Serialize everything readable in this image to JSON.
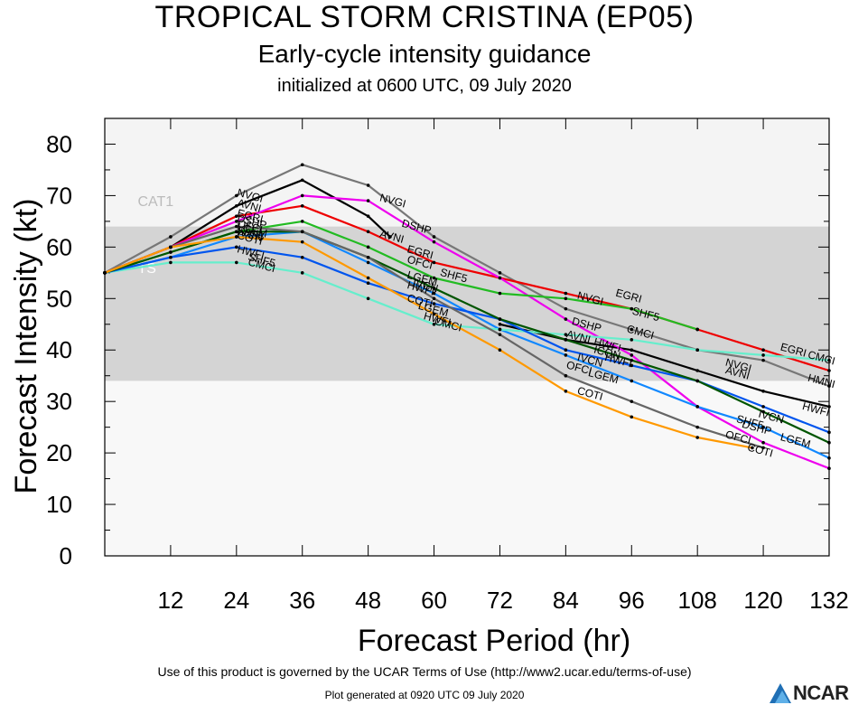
{
  "header": {
    "title": "TROPICAL STORM CRISTINA (EP05)",
    "subtitle": "Early-cycle intensity guidance",
    "initialized": "initialized at 0600 UTC, 09 July 2020"
  },
  "footer": {
    "terms": "Use of this product is governed by the UCAR Terms of Use (http://www2.ucar.edu/terms-of-use)",
    "generated": "Plot generated at 0920 UTC   09 July 2020",
    "logo_text": "NCAR"
  },
  "chart_data": {
    "type": "line",
    "xlabel": "Forecast Period (hr)",
    "ylabel": "Forecast Intensity (kt)",
    "xlim": [
      0,
      132
    ],
    "ylim": [
      0,
      85
    ],
    "xticks": [
      12,
      24,
      36,
      48,
      60,
      72,
      84,
      96,
      108,
      120,
      132
    ],
    "yticks": [
      0,
      10,
      20,
      30,
      40,
      50,
      60,
      70,
      80
    ],
    "bands": [
      {
        "label": "TS",
        "from": 34,
        "to": 64,
        "color": "#d4d4d4"
      },
      {
        "label": "CAT1",
        "from": 64,
        "to": 85,
        "color": "#f4f4f4"
      }
    ],
    "series": [
      {
        "name": "NVGI",
        "color": "#777777",
        "points": [
          [
            0,
            55
          ],
          [
            12,
            62
          ],
          [
            24,
            70
          ],
          [
            36,
            76
          ],
          [
            48,
            72
          ],
          [
            60,
            62
          ],
          [
            72,
            55
          ],
          [
            84,
            48
          ],
          [
            96,
            44
          ],
          [
            108,
            40
          ],
          [
            120,
            38
          ],
          [
            132,
            33
          ]
        ]
      },
      {
        "name": "AVNI",
        "color": "#000000",
        "points": [
          [
            0,
            55
          ],
          [
            12,
            60
          ],
          [
            24,
            68
          ],
          [
            36,
            73
          ],
          [
            48,
            66
          ],
          [
            52,
            62
          ]
        ]
      },
      {
        "name": "AVNI",
        "color": "#000000",
        "points": [
          [
            72,
            45
          ],
          [
            84,
            42
          ],
          [
            96,
            40
          ],
          [
            108,
            36
          ],
          [
            120,
            32
          ],
          [
            132,
            29
          ]
        ]
      },
      {
        "name": "EGRI",
        "color": "#ee0000",
        "points": [
          [
            0,
            55
          ],
          [
            12,
            60
          ],
          [
            24,
            66
          ],
          [
            36,
            68
          ],
          [
            48,
            63
          ],
          [
            60,
            57
          ],
          [
            72,
            54
          ],
          [
            84,
            51
          ],
          [
            96,
            48
          ],
          [
            108,
            44
          ],
          [
            120,
            40
          ],
          [
            132,
            36
          ]
        ]
      },
      {
        "name": "DSHP",
        "color": "#ee00ee",
        "points": [
          [
            0,
            55
          ],
          [
            12,
            60
          ],
          [
            24,
            65
          ],
          [
            36,
            70
          ],
          [
            48,
            69
          ],
          [
            60,
            61
          ],
          [
            72,
            54
          ],
          [
            84,
            46
          ],
          [
            96,
            39
          ],
          [
            108,
            29
          ],
          [
            120,
            22
          ],
          [
            132,
            17
          ]
        ]
      },
      {
        "name": "SHF5",
        "color": "#22bb22",
        "points": [
          [
            0,
            55
          ],
          [
            12,
            59
          ],
          [
            24,
            63
          ],
          [
            36,
            65
          ],
          [
            48,
            60
          ],
          [
            60,
            54
          ],
          [
            72,
            51
          ],
          [
            84,
            50
          ],
          [
            96,
            48
          ],
          [
            108,
            44
          ]
        ]
      },
      {
        "name": "LGEM",
        "color": "#1188ff",
        "points": [
          [
            0,
            55
          ],
          [
            12,
            58
          ],
          [
            24,
            62
          ],
          [
            36,
            63
          ],
          [
            48,
            57
          ],
          [
            60,
            51
          ],
          [
            72,
            44
          ],
          [
            84,
            39
          ],
          [
            96,
            34
          ],
          [
            108,
            29
          ],
          [
            120,
            25
          ],
          [
            132,
            19
          ]
        ]
      },
      {
        "name": "CMCI",
        "color": "#66eecc",
        "points": [
          [
            0,
            55
          ],
          [
            12,
            57
          ],
          [
            24,
            57
          ],
          [
            36,
            55
          ],
          [
            48,
            50
          ],
          [
            60,
            45
          ],
          [
            72,
            44
          ],
          [
            84,
            43
          ],
          [
            96,
            42
          ],
          [
            108,
            40
          ],
          [
            120,
            39
          ],
          [
            132,
            38
          ]
        ]
      },
      {
        "name": "HWFI",
        "color": "#0055ee",
        "points": [
          [
            0,
            55
          ],
          [
            12,
            58
          ],
          [
            24,
            60
          ],
          [
            36,
            58
          ],
          [
            48,
            53
          ],
          [
            60,
            49
          ],
          [
            72,
            46
          ],
          [
            84,
            40
          ],
          [
            96,
            37
          ],
          [
            108,
            34
          ],
          [
            120,
            29
          ],
          [
            132,
            24
          ]
        ]
      },
      {
        "name": "IVCN",
        "color": "#005500",
        "points": [
          [
            0,
            55
          ],
          [
            12,
            59
          ],
          [
            24,
            63
          ],
          [
            36,
            63
          ],
          [
            48,
            58
          ],
          [
            60,
            52
          ],
          [
            72,
            46
          ],
          [
            84,
            42
          ],
          [
            96,
            38
          ],
          [
            108,
            34
          ],
          [
            120,
            28
          ],
          [
            132,
            22
          ]
        ]
      },
      {
        "name": "OFCI",
        "color": "#666666",
        "points": [
          [
            0,
            55
          ],
          [
            12,
            60
          ],
          [
            24,
            64
          ],
          [
            36,
            63
          ],
          [
            48,
            58
          ],
          [
            60,
            50
          ],
          [
            72,
            43
          ],
          [
            84,
            35
          ],
          [
            96,
            30
          ],
          [
            108,
            25
          ],
          [
            120,
            21
          ]
        ]
      },
      {
        "name": "COTI",
        "color": "#ff9900",
        "points": [
          [
            0,
            55
          ],
          [
            12,
            60
          ],
          [
            24,
            62
          ],
          [
            36,
            61
          ],
          [
            48,
            54
          ],
          [
            60,
            47
          ],
          [
            72,
            40
          ],
          [
            84,
            32
          ],
          [
            96,
            27
          ],
          [
            108,
            23
          ],
          [
            118,
            21
          ]
        ]
      }
    ],
    "labels": [
      {
        "text": "NVGI",
        "x": 24,
        "y": 70
      },
      {
        "text": "AVNI",
        "x": 24,
        "y": 68
      },
      {
        "text": "EGRI",
        "x": 24,
        "y": 66
      },
      {
        "text": "DSHP",
        "x": 24,
        "y": 65
      },
      {
        "text": "OFCI",
        "x": 24,
        "y": 64
      },
      {
        "text": "LGEM",
        "x": 24,
        "y": 63.4
      },
      {
        "text": "SHF5",
        "x": 24,
        "y": 62.6
      },
      {
        "text": "IVCN",
        "x": 24,
        "y": 62.4
      },
      {
        "text": "COTI",
        "x": 24,
        "y": 61.7
      },
      {
        "text": "HWFI",
        "x": 24,
        "y": 59
      },
      {
        "text": "SHF5",
        "x": 26,
        "y": 57.5
      },
      {
        "text": "CMCI",
        "x": 26,
        "y": 56.5
      },
      {
        "text": "NVGI",
        "x": 50,
        "y": 69
      },
      {
        "text": "DSHP",
        "x": 54,
        "y": 64
      },
      {
        "text": "AVNI",
        "x": 50,
        "y": 62
      },
      {
        "text": "EGRI",
        "x": 55,
        "y": 59
      },
      {
        "text": "OFCI",
        "x": 55,
        "y": 57
      },
      {
        "text": "SHF5",
        "x": 61,
        "y": 54.5
      },
      {
        "text": "LGEM",
        "x": 55,
        "y": 54
      },
      {
        "text": "IVCN",
        "x": 56,
        "y": 52.5
      },
      {
        "text": "HWFI",
        "x": 55,
        "y": 52
      },
      {
        "text": "COTI",
        "x": 55,
        "y": 49.5
      },
      {
        "text": "LGEM",
        "x": 57,
        "y": 48
      },
      {
        "text": "HWFI",
        "x": 58,
        "y": 46
      },
      {
        "text": "CMCI",
        "x": 60,
        "y": 45
      },
      {
        "text": "NVGI",
        "x": 86,
        "y": 50
      },
      {
        "text": "EGRI",
        "x": 93,
        "y": 50.5
      },
      {
        "text": "SHF5",
        "x": 96,
        "y": 47
      },
      {
        "text": "DSHP",
        "x": 85,
        "y": 45
      },
      {
        "text": "CMCI",
        "x": 95,
        "y": 43.5
      },
      {
        "text": "AVNI",
        "x": 84,
        "y": 42.5
      },
      {
        "text": "HWFI",
        "x": 89,
        "y": 41
      },
      {
        "text": "ICON",
        "x": 89,
        "y": 39.5
      },
      {
        "text": "IVCN",
        "x": 86,
        "y": 38
      },
      {
        "text": "HWFI",
        "x": 91,
        "y": 38
      },
      {
        "text": "OFCI",
        "x": 84,
        "y": 36.5
      },
      {
        "text": "LGEM",
        "x": 88,
        "y": 35
      },
      {
        "text": "COTI",
        "x": 86,
        "y": 31.5
      },
      {
        "text": "NVGI",
        "x": 113,
        "y": 37
      },
      {
        "text": "EGRI",
        "x": 123,
        "y": 40
      },
      {
        "text": "CMCI",
        "x": 128,
        "y": 38.5
      },
      {
        "text": "AVNI",
        "x": 113,
        "y": 35.5
      },
      {
        "text": "HMNI",
        "x": 128,
        "y": 34
      },
      {
        "text": "HWFI",
        "x": 127,
        "y": 28.5
      },
      {
        "text": "IVCN",
        "x": 119,
        "y": 27
      },
      {
        "text": "SHF5",
        "x": 115,
        "y": 26
      },
      {
        "text": "DSHP",
        "x": 116,
        "y": 25
      },
      {
        "text": "LGEM",
        "x": 123,
        "y": 22.5
      },
      {
        "text": "OFCI",
        "x": 113,
        "y": 23
      },
      {
        "text": "COTI",
        "x": 117,
        "y": 20.5
      }
    ]
  }
}
